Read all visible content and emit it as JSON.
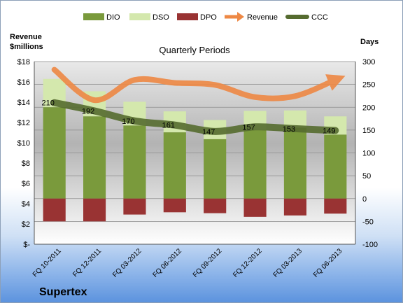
{
  "chart_data": {
    "type": "bar",
    "title": "Quarterly Periods",
    "company": "Supertex",
    "left_axis_label": [
      "Revenue",
      "$millions"
    ],
    "right_axis_label": "Days",
    "left_ticks": [
      "$-",
      "$2",
      "$4",
      "$6",
      "$8",
      "$10",
      "$12",
      "$14",
      "$16",
      "$18"
    ],
    "right_ticks": [
      "-100",
      "-50",
      "0",
      "50",
      "100",
      "150",
      "200",
      "250",
      "300"
    ],
    "right_range": [
      -100,
      300
    ],
    "left_range": [
      0,
      18
    ],
    "legend_position": "top",
    "categories": [
      "FQ 10-2011",
      "FQ 12-2011",
      "FQ 03-2012",
      "FQ 06-2012",
      "FQ 09-2012",
      "FQ 12-2012",
      "FQ 03-2013",
      "FQ 06-2013"
    ],
    "series": [
      {
        "name": "DIO",
        "axis": "right",
        "color": "#7a9a3c",
        "values": [
          200,
          180,
          160,
          145,
          130,
          150,
          155,
          140
        ]
      },
      {
        "name": "DSO",
        "axis": "right",
        "color": "#d4e8ad",
        "values": [
          62,
          55,
          52,
          46,
          42,
          42,
          38,
          40
        ]
      },
      {
        "name": "DPO",
        "axis": "right",
        "color": "#993333",
        "values": [
          -50,
          -50,
          -35,
          -30,
          -32,
          -40,
          -37,
          -33
        ]
      },
      {
        "name": "Revenue",
        "axis": "left",
        "color": "#ee8844",
        "values": [
          17.2,
          14.2,
          16.2,
          15.9,
          15.7,
          14.5,
          14.6,
          16.2
        ]
      },
      {
        "name": "CCC",
        "axis": "right",
        "color": "#556b2f",
        "values": [
          210,
          192,
          170,
          161,
          147,
          157,
          153,
          149
        ]
      }
    ],
    "ccc_labels": [
      "210",
      "192",
      "170",
      "161",
      "147",
      "157",
      "153",
      "149"
    ],
    "grid": true
  }
}
